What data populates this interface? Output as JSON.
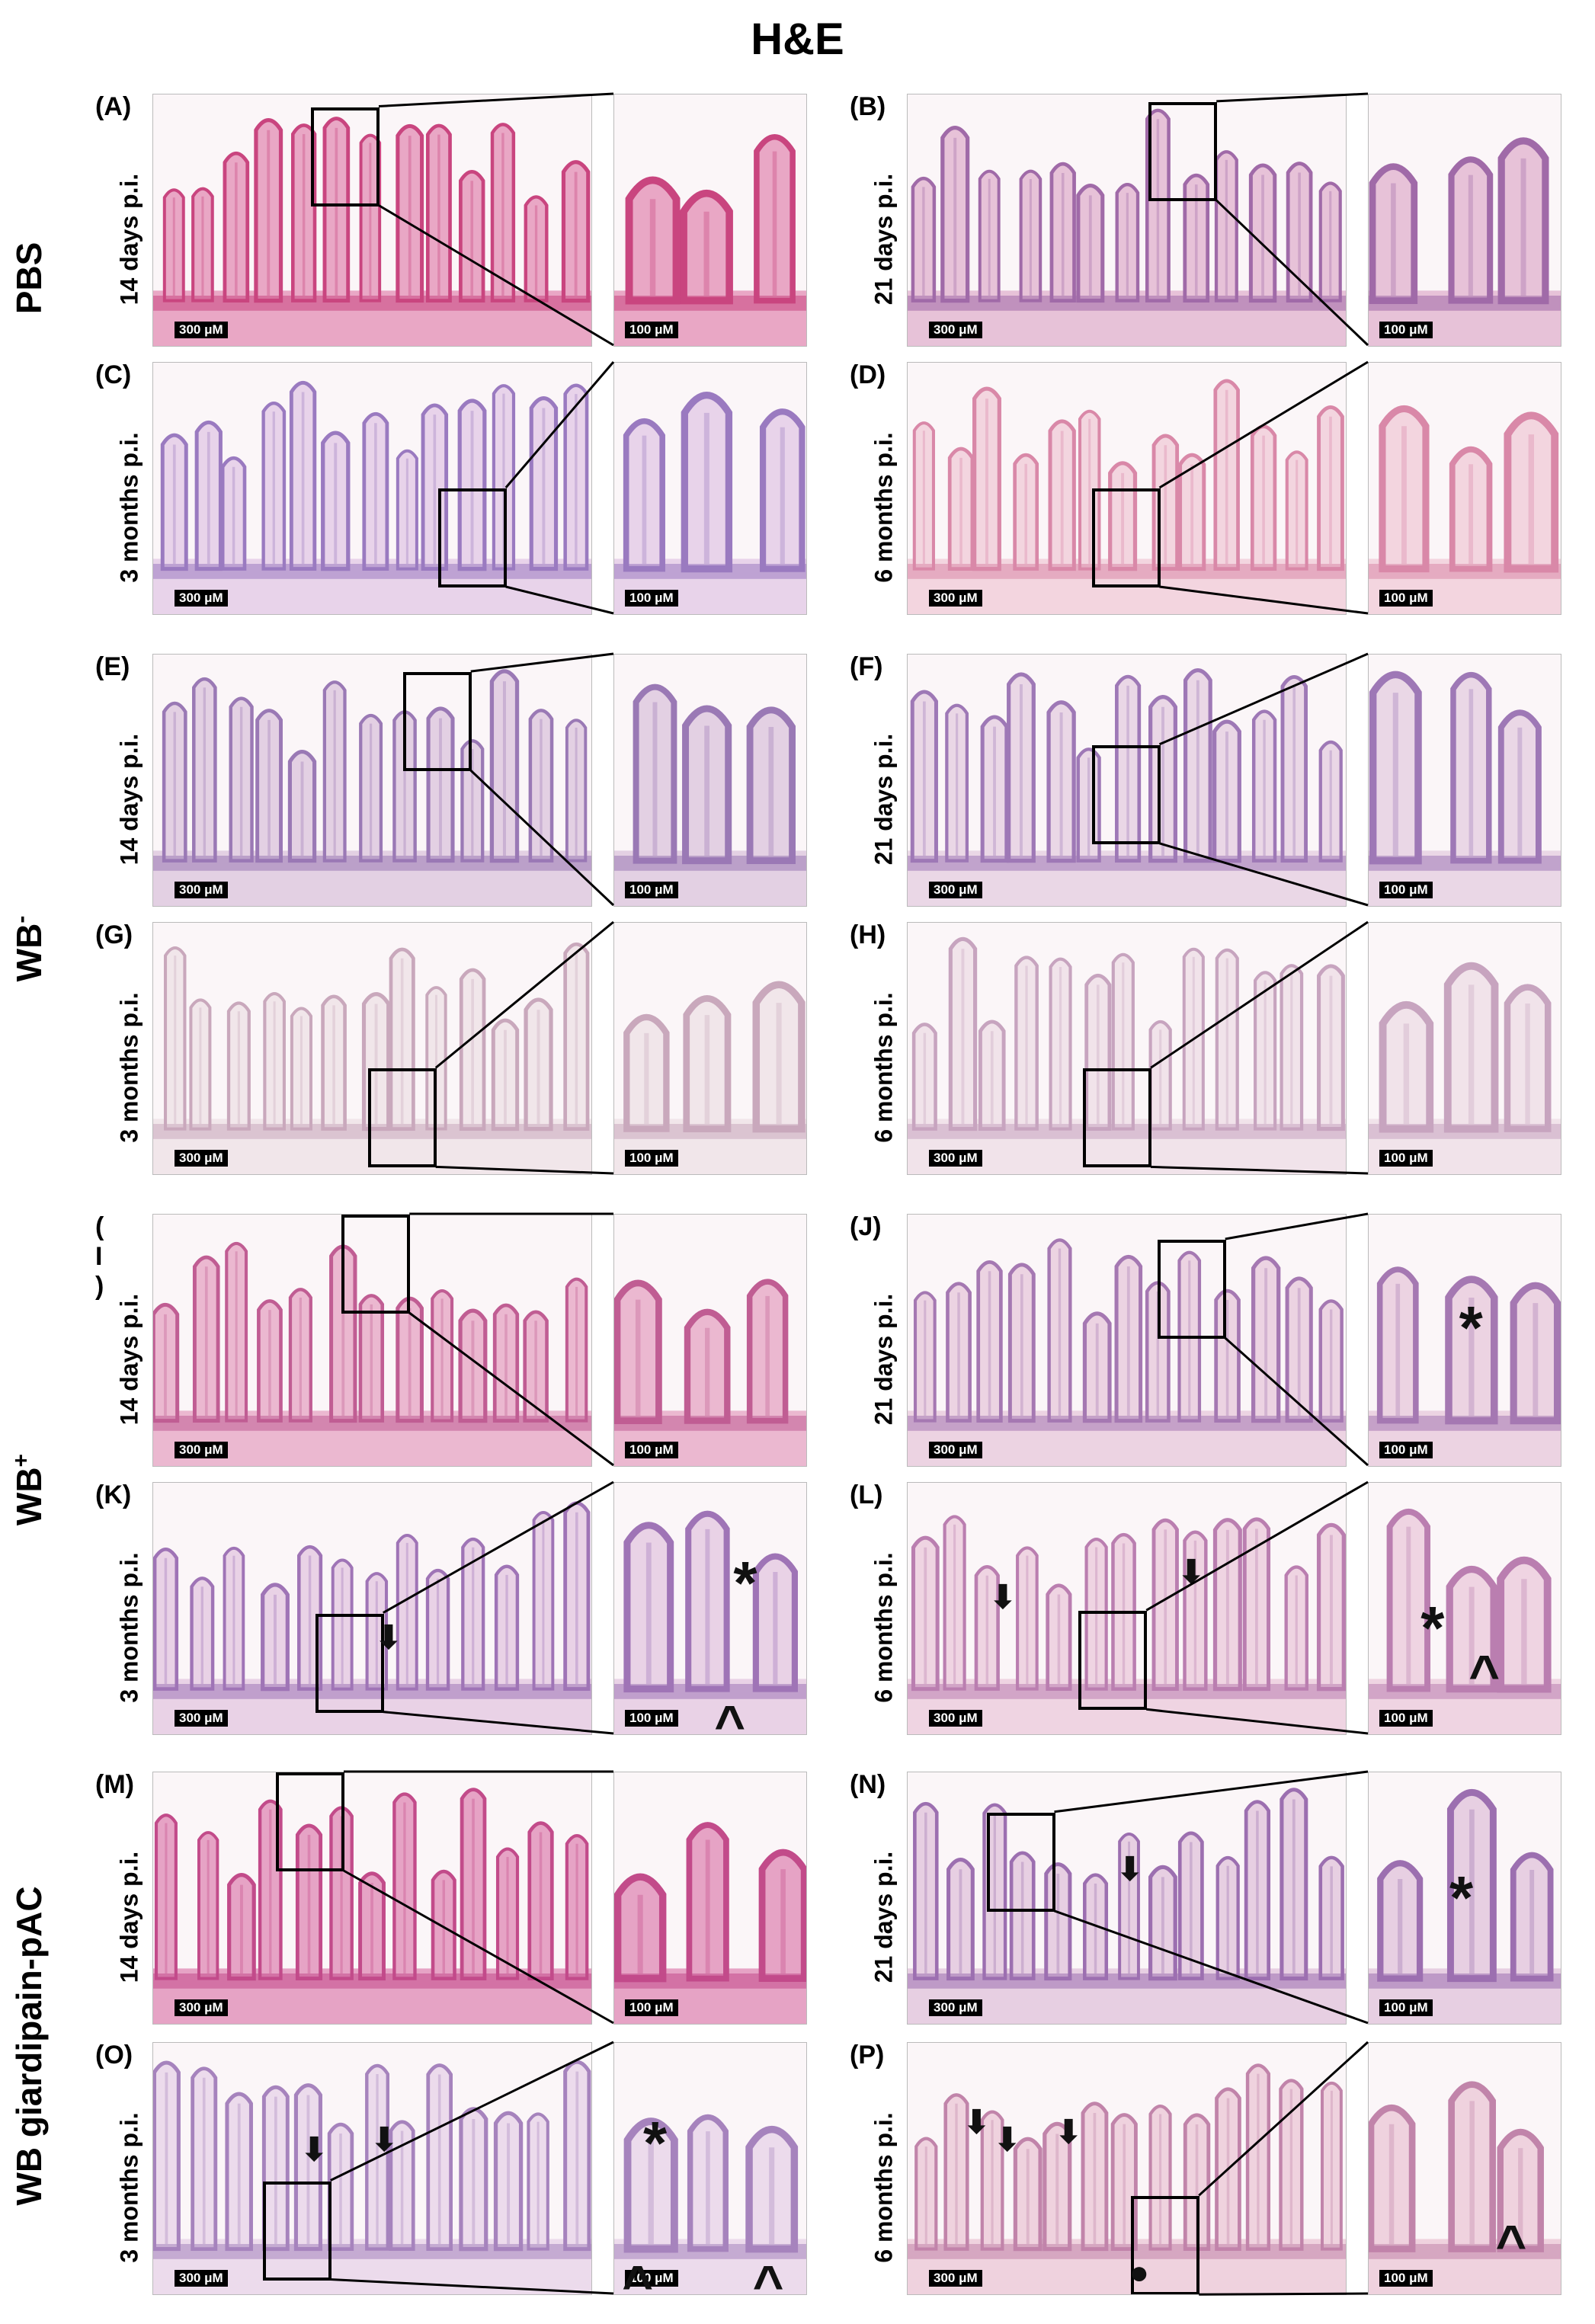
{
  "title": "H&E",
  "groups": [
    {
      "label": "PBS",
      "sup": ""
    },
    {
      "label": "WB",
      "sup": "-"
    },
    {
      "label": "WB",
      "sup": "+"
    },
    {
      "label": "WB giardipain-pAC",
      "sup": ""
    }
  ],
  "scale_low": "300 μM",
  "scale_high": "100 μM",
  "panels": [
    {
      "letter": "(A)",
      "time": "14 days p.i.",
      "markers": []
    },
    {
      "letter": "(B)",
      "time": "21 days p.i.",
      "markers": []
    },
    {
      "letter": "(C)",
      "time": "3 months p.i.",
      "markers": []
    },
    {
      "letter": "(D)",
      "time": "6 months p.i.",
      "markers": []
    },
    {
      "letter": "(E)",
      "time": "14 days p.i.",
      "markers": []
    },
    {
      "letter": "(F)",
      "time": "21 days p.i.",
      "markers": []
    },
    {
      "letter": "(G)",
      "time": "3 months p.i.",
      "markers": []
    },
    {
      "letter": "(H)",
      "time": "6 months p.i.",
      "markers": []
    },
    {
      "letter": "( I )",
      "time": "14 days p.i.",
      "markers": []
    },
    {
      "letter": "(J)",
      "time": "21 days p.i.",
      "markers": [
        "asterisk"
      ]
    },
    {
      "letter": "(K)",
      "time": "3 months p.i.",
      "markers": [
        "arrow",
        "asterisk",
        "arrowhead"
      ]
    },
    {
      "letter": "(L)",
      "time": "6 months p.i.",
      "markers": [
        "arrow",
        "arrow",
        "asterisk",
        "arrowhead"
      ]
    },
    {
      "letter": "(M)",
      "time": "14 days p.i.",
      "markers": []
    },
    {
      "letter": "(N)",
      "time": "21 days p.i.",
      "markers": [
        "arrow",
        "asterisk"
      ]
    },
    {
      "letter": "(O)",
      "time": "3 months p.i.",
      "markers": [
        "arrow",
        "arrow",
        "asterisk",
        "arrowhead",
        "arrowhead"
      ]
    },
    {
      "letter": "(P)",
      "time": "6 months p.i.",
      "markers": [
        "arrow",
        "arrow",
        "arrow",
        "dot",
        "arrowhead"
      ]
    }
  ],
  "colors": {
    "pink_stain": "#d46a9a",
    "purple_stain": "#8a5aa8",
    "pale_stain": "#e9c6d6"
  }
}
